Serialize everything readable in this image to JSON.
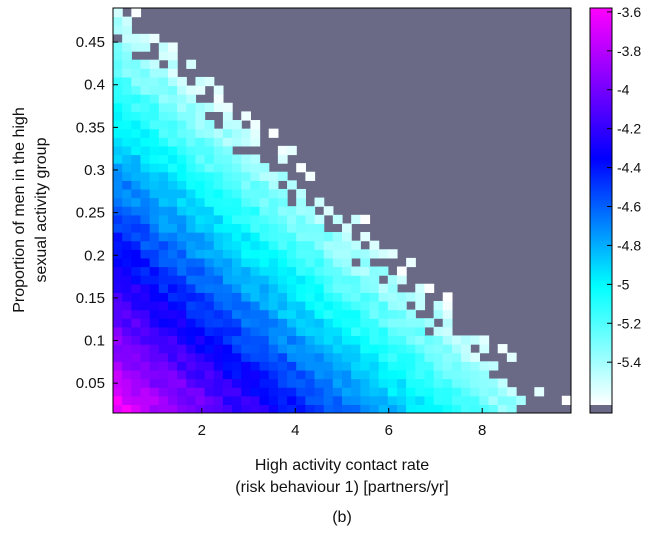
{
  "chart_data": {
    "type": "heatmap",
    "xlabel_line1": "High activity contact rate",
    "xlabel_line2": "(risk behaviour 1) [partners/yr]",
    "ylabel_line1": "Proportion of men in the high",
    "ylabel_line2": "sexual activity group",
    "xlim": [
      0.1,
      9.9
    ],
    "ylim": [
      0.015,
      0.49
    ],
    "x_ticks": [
      2,
      4,
      6,
      8
    ],
    "x_tick_labels": [
      "2",
      "4",
      "6",
      "8"
    ],
    "y_ticks": [
      0.05,
      0.1,
      0.15,
      0.2,
      0.25,
      0.3,
      0.35,
      0.4,
      0.45
    ],
    "y_tick_labels": [
      "0.05",
      "0.1",
      "0.15",
      "0.2",
      "0.25",
      "0.3",
      "0.35",
      "0.4",
      "0.45"
    ],
    "colorbar": {
      "range": [
        -5.62,
        -3.58
      ],
      "ticks": [
        -3.6,
        -3.8,
        -4,
        -4.2,
        -4.4,
        -4.6,
        -4.8,
        -5,
        -5.2,
        -5.4
      ],
      "tick_labels": [
        "-3.6",
        "-3.8",
        "-4",
        "-4.2",
        "-4.4",
        "-4.6",
        "-4.8",
        "-5",
        "-5.2",
        "-5.4"
      ],
      "stops": [
        "#ffffff",
        "#00ffff",
        "#0000ff",
        "#ff00ff"
      ],
      "no_data_color": "#6a6a86"
    },
    "grid": false,
    "surface": {
      "description_of_trend": "values decrease with x*y product; undefined region (grey) upper-right",
      "value_at_origin": -3.6,
      "value_at_boundary": -5.5
    },
    "panel_label": "(b)"
  }
}
